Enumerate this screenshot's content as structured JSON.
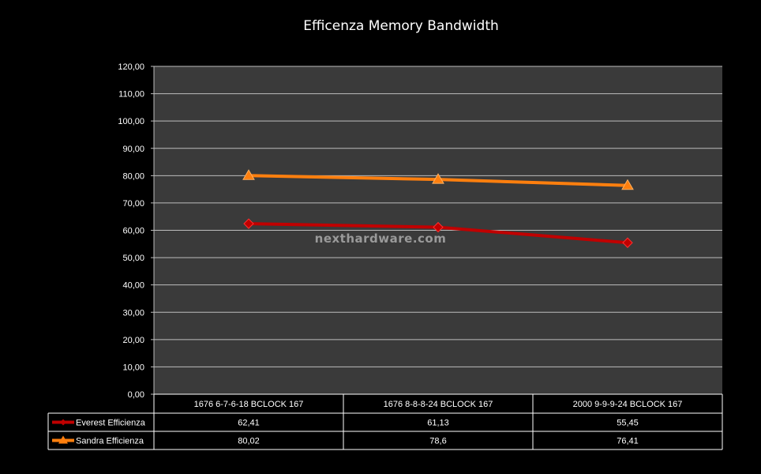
{
  "chart_data": {
    "type": "line",
    "title": "Efficenza Memory Bandwidth",
    "categories": [
      "1676 6-7-6-18 BCLOCK 167",
      "1676 8-8-8-24 BCLOCK 167",
      "2000 9-9-9-24 BCLOCK 167"
    ],
    "ylim": [
      0,
      120
    ],
    "yticks": [
      "0,00",
      "10,00",
      "20,00",
      "30,00",
      "40,00",
      "50,00",
      "60,00",
      "70,00",
      "80,00",
      "90,00",
      "100,00",
      "110,00",
      "120,00"
    ],
    "grid": true,
    "legend": "data-table",
    "watermark": "nexthardware.com",
    "series": [
      {
        "name": "Everest Efficienza",
        "values": [
          62.41,
          61.13,
          55.45
        ],
        "labels": [
          "62,41",
          "61,13",
          "55,45"
        ],
        "color": "#c00000",
        "marker": "diamond"
      },
      {
        "name": "Sandra Efficienza",
        "values": [
          80.02,
          78.6,
          76.41
        ],
        "labels": [
          "80,02",
          "78,6",
          "76,41"
        ],
        "color": "#ff7f0e",
        "marker": "triangle"
      }
    ]
  }
}
